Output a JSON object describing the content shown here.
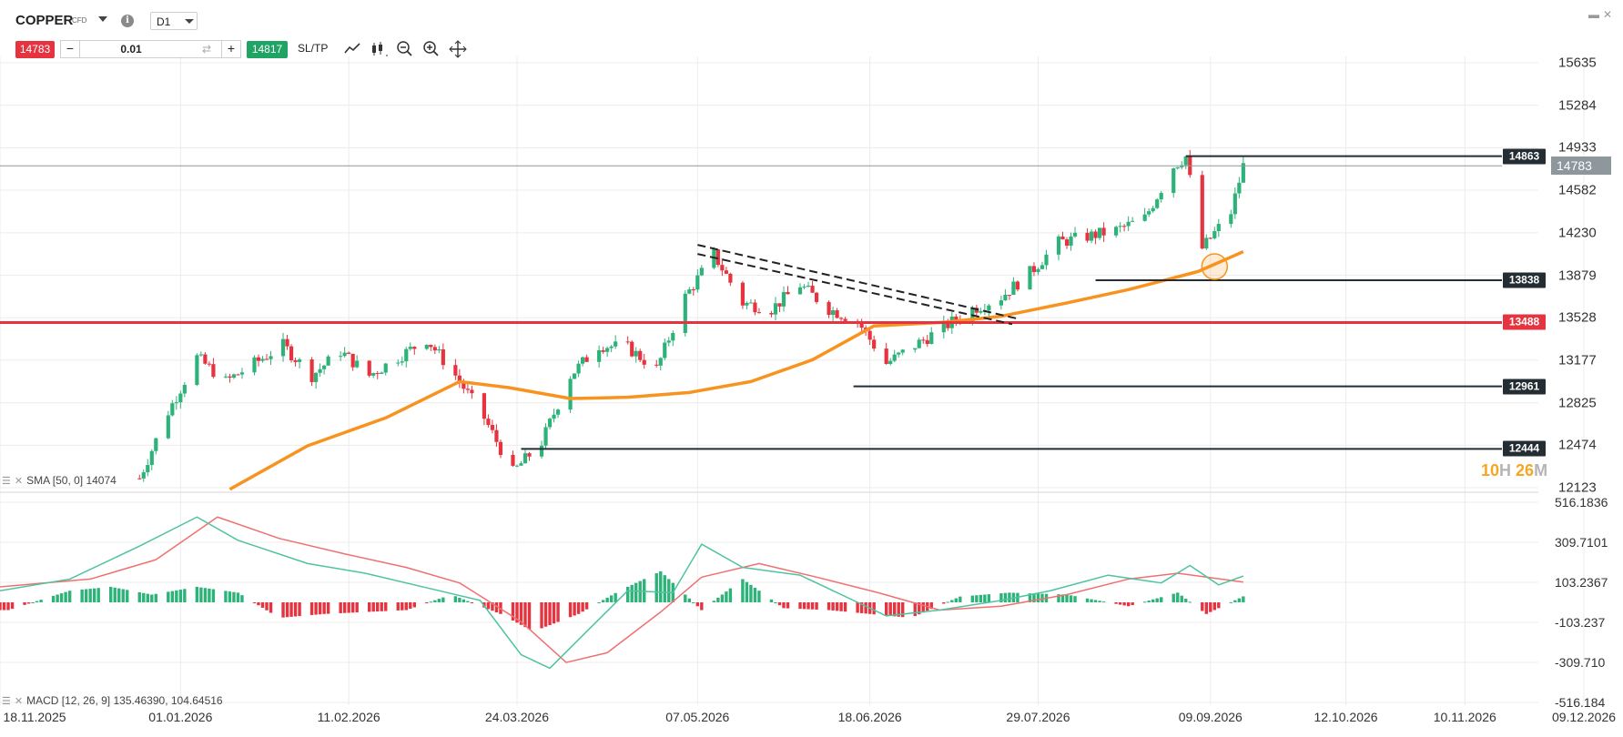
{
  "header": {
    "symbol": "COPPER",
    "symbol_type": "CFD",
    "info_icon": "info-icon",
    "timeframe": "D1",
    "sell_price": "14783",
    "buy_price": "14817",
    "quantity": "0.01",
    "minus": "−",
    "plus": "+",
    "sltp_label": "SL/TP",
    "tools": [
      "line-chart-icon",
      "candles-icon",
      "zoom-out-icon",
      "zoom-in-icon",
      "crosshair-move-icon"
    ],
    "window_controls": [
      "minimize-icon",
      "close-icon"
    ]
  },
  "colors": {
    "bull": "#2db37a",
    "bear": "#e5343f",
    "sma": "#f7931e",
    "macd_line": "#4fc3a1",
    "signal_line": "#f07070",
    "resistance": "#e5343f",
    "level_line": "#232d33",
    "current_price_line": "#8e979c"
  },
  "price_axis": [
    "15635",
    "15284",
    "14933",
    "14582",
    "14230",
    "13879",
    "13528",
    "13177",
    "12825",
    "12474",
    "12123"
  ],
  "macd_axis": [
    "516.1836",
    "309.7101",
    "103.2367",
    "-103.237",
    "-309.710",
    "-516.184"
  ],
  "date_axis": [
    "18.11.2025",
    "01.01.2026",
    "11.02.2026",
    "24.03.2026",
    "07.05.2026",
    "18.06.2026",
    "29.07.2026",
    "09.09.2026",
    "12.10.2026",
    "10.11.2026",
    "09.12.2026"
  ],
  "levels": {
    "high": "14863",
    "current": "14783",
    "support_1": "13838",
    "resistance": "13488",
    "support_2": "12961",
    "support_3": "12444"
  },
  "countdown": {
    "hours": "10",
    "h_unit": "H",
    "minutes": "26",
    "m_unit": "M"
  },
  "indicators": {
    "sma_label": "SMA [50, 0] 14074",
    "macd_label": "MACD [12, 26, 9] 135.46390, 104.64516"
  },
  "chart_data": [
    {
      "type": "candlestick",
      "title": "COPPER",
      "timeframe": "D1",
      "ylim": [
        12123,
        15635
      ],
      "x_range": [
        "18.11.2025",
        "09.12.2026"
      ],
      "close_path": [
        [
          "2025-12-22",
          12200
        ],
        [
          "2025-12-29",
          12750
        ],
        [
          "2026-01-05",
          13200
        ],
        [
          "2026-01-12",
          13000
        ],
        [
          "2026-01-19",
          13150
        ],
        [
          "2026-01-26",
          13300
        ],
        [
          "2026-02-02",
          13050
        ],
        [
          "2026-02-09",
          13250
        ],
        [
          "2026-02-16",
          13050
        ],
        [
          "2026-02-23",
          13200
        ],
        [
          "2026-03-02",
          13350
        ],
        [
          "2026-03-09",
          13050
        ],
        [
          "2026-03-16",
          12700
        ],
        [
          "2026-03-23",
          12250
        ],
        [
          "2026-03-30",
          12500
        ],
        [
          "2026-04-06",
          13050
        ],
        [
          "2026-04-13",
          13300
        ],
        [
          "2026-04-20",
          13280
        ],
        [
          "2026-04-27",
          13100
        ],
        [
          "2026-05-04",
          13700
        ],
        [
          "2026-05-11",
          14050
        ],
        [
          "2026-05-18",
          13650
        ],
        [
          "2026-05-25",
          13600
        ],
        [
          "2026-06-01",
          13800
        ],
        [
          "2026-06-08",
          13600
        ],
        [
          "2026-06-15",
          13500
        ],
        [
          "2026-06-22",
          13150
        ],
        [
          "2026-06-29",
          13300
        ],
        [
          "2026-07-06",
          13450
        ],
        [
          "2026-07-13",
          13600
        ],
        [
          "2026-07-20",
          13700
        ],
        [
          "2026-07-27",
          13900
        ],
        [
          "2026-08-03",
          14150
        ],
        [
          "2026-08-10",
          14200
        ],
        [
          "2026-08-17",
          14250
        ],
        [
          "2026-08-24",
          14350
        ],
        [
          "2026-08-31",
          14780
        ],
        [
          "2026-09-03",
          14860
        ],
        [
          "2026-09-07",
          14100
        ],
        [
          "2026-09-14",
          14400
        ],
        [
          "2026-09-17",
          14783
        ]
      ],
      "annotations": {
        "high": 14863,
        "current": 14783,
        "support_1": 13838,
        "resistance": 13488,
        "support_2": 12961,
        "support_3": 12444,
        "trendline": {
          "from": [
            "2026-05-07",
            14130
          ],
          "to": [
            "2026-07-24",
            13520
          ]
        },
        "highlight_circle": [
          "2026-09-10",
          13950
        ]
      }
    },
    {
      "type": "line",
      "name": "SMA [50, 0] 14074",
      "points": [
        [
          "2026-01-13",
          12110
        ],
        [
          "2026-02-01",
          12470
        ],
        [
          "2026-02-20",
          12700
        ],
        [
          "2026-03-10",
          13000
        ],
        [
          "2026-03-22",
          12950
        ],
        [
          "2026-04-06",
          12860
        ],
        [
          "2026-04-20",
          12870
        ],
        [
          "2026-05-05",
          12910
        ],
        [
          "2026-05-20",
          13000
        ],
        [
          "2026-06-04",
          13180
        ],
        [
          "2026-06-19",
          13460
        ],
        [
          "2026-07-06",
          13490
        ],
        [
          "2026-07-20",
          13540
        ],
        [
          "2026-08-05",
          13650
        ],
        [
          "2026-08-20",
          13760
        ],
        [
          "2026-09-06",
          13910
        ],
        [
          "2026-09-17",
          14074
        ]
      ]
    },
    {
      "type": "bar+line",
      "name": "MACD [12, 26, 9] 135.46390, 104.64516",
      "ylim": [
        -516.184,
        516.1836
      ],
      "macd_line": [
        [
          "2025-11-18",
          60
        ],
        [
          "2025-12-05",
          120
        ],
        [
          "2025-12-22",
          290
        ],
        [
          "2026-01-05",
          440
        ],
        [
          "2026-01-15",
          320
        ],
        [
          "2026-02-01",
          200
        ],
        [
          "2026-02-15",
          150
        ],
        [
          "2026-03-01",
          80
        ],
        [
          "2026-03-15",
          10
        ],
        [
          "2026-03-25",
          -270
        ],
        [
          "2026-04-01",
          -340
        ],
        [
          "2026-04-10",
          -150
        ],
        [
          "2026-04-20",
          60
        ],
        [
          "2026-05-01",
          50
        ],
        [
          "2026-05-08",
          300
        ],
        [
          "2026-05-18",
          180
        ],
        [
          "2026-06-01",
          140
        ],
        [
          "2026-06-15",
          0
        ],
        [
          "2026-06-22",
          -70
        ],
        [
          "2026-07-05",
          -40
        ],
        [
          "2026-07-20",
          10
        ],
        [
          "2026-08-01",
          60
        ],
        [
          "2026-08-15",
          140
        ],
        [
          "2026-08-28",
          100
        ],
        [
          "2026-09-04",
          190
        ],
        [
          "2026-09-11",
          90
        ],
        [
          "2026-09-17",
          135.4639
        ]
      ],
      "signal_line": [
        [
          "2025-11-18",
          80
        ],
        [
          "2025-12-10",
          120
        ],
        [
          "2025-12-26",
          220
        ],
        [
          "2026-01-10",
          440
        ],
        [
          "2026-01-25",
          330
        ],
        [
          "2026-02-10",
          250
        ],
        [
          "2026-02-25",
          180
        ],
        [
          "2026-03-10",
          100
        ],
        [
          "2026-03-25",
          -100
        ],
        [
          "2026-04-05",
          -310
        ],
        [
          "2026-04-15",
          -260
        ],
        [
          "2026-04-28",
          -50
        ],
        [
          "2026-05-08",
          130
        ],
        [
          "2026-05-22",
          200
        ],
        [
          "2026-06-05",
          130
        ],
        [
          "2026-06-20",
          50
        ],
        [
          "2026-07-05",
          -40
        ],
        [
          "2026-07-20",
          -20
        ],
        [
          "2026-08-05",
          40
        ],
        [
          "2026-08-20",
          120
        ],
        [
          "2026-09-01",
          150
        ],
        [
          "2026-09-17",
          104.6452
        ]
      ],
      "histogram": [
        [
          "2025-11-20",
          -40
        ],
        [
          "2025-12-05",
          60
        ],
        [
          "2025-12-15",
          80
        ],
        [
          "2025-12-25",
          40
        ],
        [
          "2026-01-05",
          80
        ],
        [
          "2026-01-15",
          50
        ],
        [
          "2026-01-25",
          -80
        ],
        [
          "2026-02-05",
          -60
        ],
        [
          "2026-02-15",
          -50
        ],
        [
          "2026-02-25",
          -40
        ],
        [
          "2026-03-08",
          40
        ],
        [
          "2026-03-20",
          -60
        ],
        [
          "2026-03-28",
          -150
        ],
        [
          "2026-04-08",
          -60
        ],
        [
          "2026-04-18",
          60
        ],
        [
          "2026-04-28",
          160
        ],
        [
          "2026-05-08",
          -40
        ],
        [
          "2026-05-18",
          120
        ],
        [
          "2026-05-28",
          -30
        ],
        [
          "2026-06-08",
          -40
        ],
        [
          "2026-06-18",
          -60
        ],
        [
          "2026-06-28",
          -80
        ],
        [
          "2026-07-10",
          30
        ],
        [
          "2026-07-22",
          50
        ],
        [
          "2026-08-05",
          40
        ],
        [
          "2026-08-20",
          -20
        ],
        [
          "2026-09-01",
          50
        ],
        [
          "2026-09-08",
          -60
        ],
        [
          "2026-09-17",
          30.8187
        ]
      ]
    }
  ]
}
